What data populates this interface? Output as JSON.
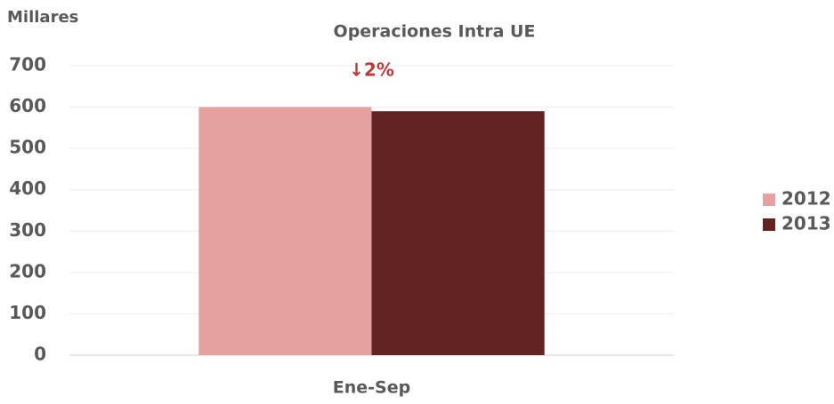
{
  "chart_data": {
    "type": "bar",
    "title": "Operaciones Intra UE",
    "ylabel": "Millares",
    "annotation": "↓2%",
    "categories": [
      "Ene-Sep"
    ],
    "series": [
      {
        "name": "2012",
        "color": "#e6a09f",
        "values": [
          600
        ]
      },
      {
        "name": "2013",
        "color": "#632323",
        "values": [
          590
        ]
      }
    ],
    "ylim": [
      0,
      700
    ],
    "yticks": [
      0,
      100,
      200,
      300,
      400,
      500,
      600,
      700
    ],
    "grid": true,
    "legend": "right"
  }
}
